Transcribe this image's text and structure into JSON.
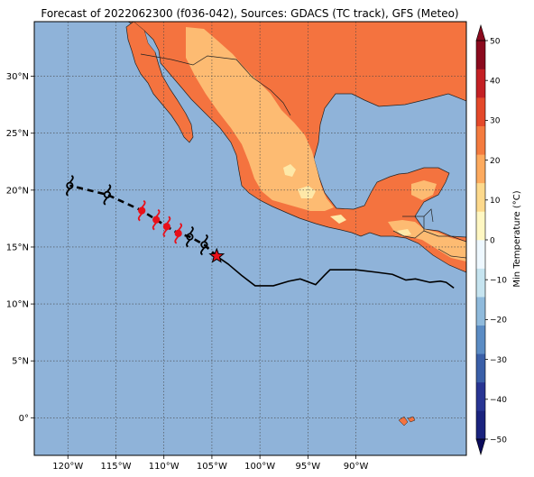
{
  "title": "Forecast of 2022062300 (f036-042), Sources: GDACS (TC track), GFS (Meteo)",
  "map": {
    "lon_range": [
      -123.5,
      -78.5
    ],
    "lat_range": [
      -3.3,
      34.8
    ],
    "x_ticks": [
      {
        "lon": -120,
        "label": "120°W"
      },
      {
        "lon": -115,
        "label": "115°W"
      },
      {
        "lon": -110,
        "label": "110°W"
      },
      {
        "lon": -105,
        "label": "105°W"
      },
      {
        "lon": -100,
        "label": "100°W"
      },
      {
        "lon": -95,
        "label": "95°W"
      },
      {
        "lon": -90,
        "label": "90°W"
      }
    ],
    "y_ticks": [
      {
        "lat": 30,
        "label": "30°N"
      },
      {
        "lat": 25,
        "label": "25°N"
      },
      {
        "lat": 20,
        "label": "20°N"
      },
      {
        "lat": 15,
        "label": "15°N"
      },
      {
        "lat": 10,
        "label": "10°N"
      },
      {
        "lat": 5,
        "label": "5°N"
      },
      {
        "lat": 0,
        "label": "0°"
      }
    ],
    "colors": {
      "ocean": "#8fb3d9",
      "land_warm": "#f4733f",
      "land_mild": "#fdbb72",
      "land_cool": "#fee8a8",
      "track_observed": "#000000",
      "track_forecast": "#000000",
      "storm_icon_forecast_window": "#e8101a",
      "current_position_star": "#e8101a"
    }
  },
  "colorbar": {
    "label": "Min Temperature (°C)",
    "ticks": [
      "50",
      "40",
      "30",
      "20",
      "10",
      "0",
      "−10",
      "−20",
      "−30",
      "−40",
      "−50"
    ],
    "colors": [
      "#1a237e",
      "#283593",
      "#3a5fa8",
      "#5b8cc4",
      "#8fbadc",
      "#c6e4f0",
      "#eef8ff",
      "#fff7c2",
      "#fdd98c",
      "#fdaa5e",
      "#f47b3f",
      "#e4492a",
      "#c42024",
      "#8b0a1e"
    ]
  },
  "chart_data": {
    "type": "map",
    "variable": "Min Temperature (°C)",
    "storm_track": {
      "observed_path": [
        [
          -79.8,
          11.4
        ],
        [
          -80.6,
          11.9
        ],
        [
          -81.2,
          12.0
        ],
        [
          -82.3,
          11.9
        ],
        [
          -83.8,
          12.2
        ],
        [
          -84.8,
          12.1
        ],
        [
          -86.2,
          12.6
        ],
        [
          -88.0,
          12.8
        ],
        [
          -90.0,
          13.0
        ],
        [
          -92.7,
          13.0
        ],
        [
          -93.3,
          12.5
        ],
        [
          -94.2,
          11.7
        ],
        [
          -95.8,
          12.2
        ],
        [
          -97.0,
          12.0
        ],
        [
          -98.6,
          11.6
        ],
        [
          -100.5,
          11.6
        ],
        [
          -101.9,
          12.5
        ],
        [
          -103.3,
          13.5
        ],
        [
          -104.5,
          14.2
        ]
      ],
      "current_position": [
        -104.5,
        14.2
      ],
      "forecast_positions": [
        {
          "lon": -105.8,
          "lat": 15.2,
          "color": "black"
        },
        {
          "lon": -107.3,
          "lat": 15.9,
          "color": "black"
        },
        {
          "lon": -108.5,
          "lat": 16.2,
          "color": "red"
        },
        {
          "lon": -109.7,
          "lat": 16.8,
          "color": "red"
        },
        {
          "lon": -110.8,
          "lat": 17.4,
          "color": "red"
        },
        {
          "lon": -112.3,
          "lat": 18.2,
          "color": "red"
        },
        {
          "lon": -115.9,
          "lat": 19.6,
          "color": "black"
        },
        {
          "lon": -119.8,
          "lat": 20.4,
          "color": "black"
        }
      ],
      "forecast_window_dots": [
        {
          "lon": -108.5,
          "lat": 16.2
        },
        {
          "lon": -109.7,
          "lat": 16.8
        },
        {
          "lon": -110.8,
          "lat": 17.4
        },
        {
          "lon": -112.3,
          "lat": 18.2
        }
      ]
    }
  }
}
